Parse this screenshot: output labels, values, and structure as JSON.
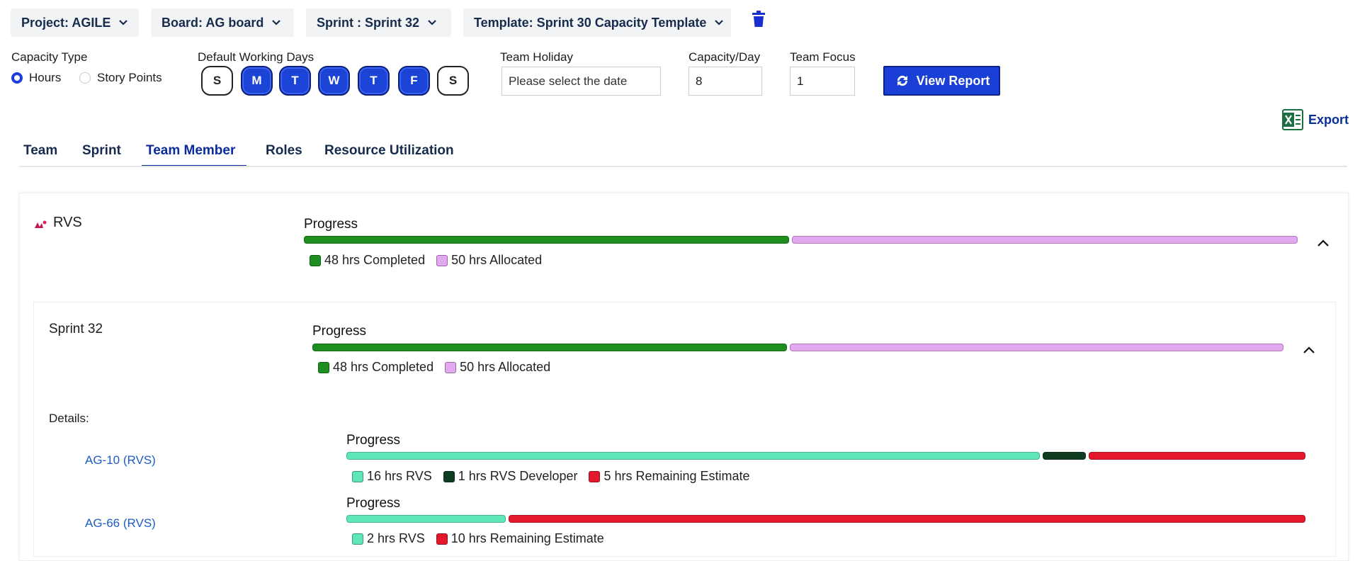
{
  "toolbar": {
    "dropdowns": [
      "Project: AGILE",
      "Board: AG board",
      "Sprint : Sprint 32",
      "Template: Sprint 30 Capacity Template"
    ]
  },
  "settings": {
    "capacity_type_label": "Capacity Type",
    "capacity_options": [
      "Hours",
      "Story Points"
    ],
    "capacity_selected": 0,
    "working_days_label": "Default Working Days",
    "days": [
      {
        "label": "S",
        "selected": false
      },
      {
        "label": "M",
        "selected": true
      },
      {
        "label": "T",
        "selected": true
      },
      {
        "label": "W",
        "selected": true
      },
      {
        "label": "T",
        "selected": true
      },
      {
        "label": "F",
        "selected": true
      },
      {
        "label": "S",
        "selected": false
      }
    ],
    "team_holiday_label": "Team Holiday",
    "team_holiday_placeholder": "Please select the date",
    "capacity_day_label": "Capacity/Day",
    "capacity_day_value": 8,
    "team_focus_label": "Team Focus",
    "team_focus_value": 1,
    "view_report": "View Report",
    "export": "Export"
  },
  "tabs": {
    "items": [
      "Team",
      "Sprint",
      "Team Member",
      "Roles",
      "Resource Utilization"
    ],
    "active": 2
  },
  "member": {
    "name": "RVS",
    "progress_label": "Progress",
    "segments": [
      {
        "value": 48,
        "label": "48 hrs Completed",
        "color": "#1e8f1e"
      },
      {
        "value": 50,
        "label": "50 hrs Allocated",
        "color": "#e4a8f0"
      }
    ]
  },
  "sprint": {
    "name": "Sprint 32",
    "progress_label": "Progress",
    "segments": [
      {
        "value": 48,
        "label": "48 hrs Completed",
        "color": "#1e8f1e"
      },
      {
        "value": 50,
        "label": "50 hrs Allocated",
        "color": "#e4a8f0"
      }
    ]
  },
  "details": {
    "label": "Details:",
    "issues": [
      {
        "key": "AG-10 (RVS)",
        "progress_label": "Progress",
        "segments": [
          {
            "value": 16,
            "label": "16 hrs RVS",
            "color": "#5ee8b8"
          },
          {
            "value": 1,
            "label": "1 hrs RVS Developer",
            "color": "#0f3d22"
          },
          {
            "value": 5,
            "label": "5 hrs Remaining Estimate",
            "color": "#e3192b"
          }
        ]
      },
      {
        "key": "AG-66 (RVS)",
        "progress_label": "Progress",
        "segments": [
          {
            "value": 2,
            "label": "2 hrs RVS",
            "color": "#5ee8b8"
          },
          {
            "value": 10,
            "label": "10 hrs Remaining Estimate",
            "color": "#e3192b"
          }
        ]
      }
    ]
  }
}
